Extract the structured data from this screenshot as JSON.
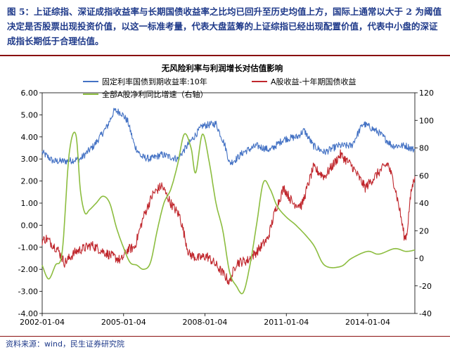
{
  "caption": "图 5：上证综指、深证成指收益率与长期国债收益率之比均已回升至历史均值上方，国际上通常以大于 2 为阈值决定是否股票出现投资价值，以这一标准考量，代表大盘蓝筹的上证综指已经出现配置价值，代表中小盘的深证成指长期低于合理估值。",
  "source": "资料来源：wind，民生证券研究院",
  "chart_data": {
    "type": "line",
    "title": "无风险利率与利润增长对估值影响",
    "xlabel": "",
    "ylabel": "",
    "x_ticks": [
      "2002-01-04",
      "2005-01-04",
      "2008-01-04",
      "2011-01-04",
      "2014-01-04"
    ],
    "x_range": [
      "2002-01-04",
      "2015-09-30"
    ],
    "ylim_left": [
      -4.0,
      6.0
    ],
    "y_ticks_left": [
      "6.00",
      "5.00",
      "4.00",
      "3.00",
      "2.00",
      "1.00",
      "0.00",
      "-1.00",
      "-2.00",
      "-3.00",
      "-4.00"
    ],
    "ylim_right": [
      -40,
      120
    ],
    "y_ticks_right": [
      "120",
      "100",
      "80",
      "60",
      "40",
      "20",
      "0",
      "-20",
      "-40"
    ],
    "legend_position": "top",
    "grid": false,
    "colors": {
      "bond_yield": "#4472c4",
      "spread": "#c0272d",
      "profit_growth": "#8cbd3f"
    },
    "series": [
      {
        "name": "固定利率国债到期收益率:10年",
        "axis": "left",
        "color": "#4472c4",
        "noise": 0.16,
        "x": [
          "2002-01-04",
          "2002-06-01",
          "2002-12-01",
          "2003-06-01",
          "2003-12-01",
          "2004-06-01",
          "2004-09-01",
          "2004-12-01",
          "2005-03-01",
          "2005-06-01",
          "2005-09-01",
          "2006-01-01",
          "2006-06-01",
          "2007-01-01",
          "2007-06-01",
          "2007-12-01",
          "2008-06-01",
          "2008-10-01",
          "2008-12-01",
          "2009-03-01",
          "2009-06-01",
          "2009-12-01",
          "2010-06-01",
          "2010-12-01",
          "2011-06-01",
          "2011-09-01",
          "2012-01-01",
          "2012-06-01",
          "2012-12-01",
          "2013-06-01",
          "2013-11-01",
          "2014-01-04",
          "2014-06-01",
          "2014-12-01",
          "2015-06-01",
          "2015-09-30"
        ],
        "y": [
          3.3,
          2.9,
          2.9,
          3.0,
          3.6,
          4.5,
          5.2,
          5.1,
          4.7,
          3.6,
          3.1,
          3.0,
          3.2,
          3.0,
          3.7,
          4.5,
          4.6,
          3.6,
          2.8,
          3.0,
          3.3,
          3.6,
          3.4,
          3.9,
          4.0,
          4.3,
          3.6,
          3.3,
          3.6,
          3.6,
          4.6,
          4.5,
          4.2,
          3.6,
          3.6,
          3.4
        ]
      },
      {
        "name": "A股收益-十年期国债收益",
        "axis": "left",
        "color": "#c0272d",
        "noise": 0.22,
        "x": [
          "2002-01-04",
          "2002-03-01",
          "2002-08-01",
          "2002-11-01",
          "2003-04-01",
          "2003-11-01",
          "2004-06-01",
          "2004-12-01",
          "2005-03-01",
          "2005-06-01",
          "2005-10-01",
          "2006-02-01",
          "2006-06-01",
          "2006-10-01",
          "2007-02-01",
          "2007-06-01",
          "2007-10-01",
          "2008-02-01",
          "2008-06-01",
          "2008-10-01",
          "2008-12-01",
          "2009-03-01",
          "2009-08-01",
          "2009-12-01",
          "2010-05-01",
          "2010-08-01",
          "2010-12-01",
          "2011-04-01",
          "2011-08-01",
          "2012-01-01",
          "2012-06-01",
          "2013-01-01",
          "2013-06-01",
          "2013-12-01",
          "2014-06-01",
          "2014-10-01",
          "2015-01-01",
          "2015-03-15",
          "2015-05-15",
          "2015-06-15",
          "2015-07-15",
          "2015-08-15",
          "2015-09-30"
        ],
        "y": [
          -0.7,
          -0.6,
          -1.1,
          -1.7,
          -1.2,
          -0.9,
          -1.3,
          -1.6,
          -1.1,
          -1.0,
          0.4,
          1.4,
          1.8,
          1.0,
          0.4,
          -1.3,
          -1.5,
          -1.4,
          -1.8,
          -2.3,
          -2.6,
          -1.7,
          -1.6,
          -1.2,
          -0.6,
          0.6,
          1.7,
          1.0,
          0.9,
          2.6,
          2.2,
          3.2,
          2.7,
          1.7,
          2.4,
          2.8,
          1.8,
          0.6,
          -0.6,
          -0.4,
          0.7,
          1.6,
          2.2
        ]
      },
      {
        "name": "全部A股净利同比增速（右轴）",
        "axis": "right",
        "color": "#8cbd3f",
        "noise": 0,
        "x": [
          "2002-01-04",
          "2002-04-01",
          "2002-07-01",
          "2002-10-01",
          "2003-01-01",
          "2003-04-01",
          "2003-06-01",
          "2003-08-01",
          "2003-10-01",
          "2004-01-01",
          "2004-04-01",
          "2004-07-01",
          "2004-10-01",
          "2005-01-01",
          "2005-04-01",
          "2005-07-01",
          "2005-10-01",
          "2006-01-01",
          "2006-04-01",
          "2006-07-01",
          "2006-10-01",
          "2007-01-01",
          "2007-04-01",
          "2007-07-01",
          "2007-09-01",
          "2007-12-01",
          "2008-03-01",
          "2008-06-01",
          "2008-09-01",
          "2008-12-01",
          "2009-03-01",
          "2009-06-01",
          "2009-09-01",
          "2009-12-01",
          "2010-03-01",
          "2010-06-01",
          "2010-09-01",
          "2011-01-01",
          "2011-06-01",
          "2012-01-01",
          "2012-06-01",
          "2013-01-01",
          "2013-06-01",
          "2014-01-01",
          "2014-06-01",
          "2015-01-01",
          "2015-06-01",
          "2015-09-30"
        ],
        "y": [
          -5,
          -15,
          -5,
          5,
          75,
          90,
          50,
          33,
          35,
          40,
          45,
          40,
          22,
          8,
          -3,
          -5,
          -8,
          -3,
          20,
          40,
          50,
          68,
          90,
          80,
          62,
          90,
          70,
          40,
          20,
          -10,
          -20,
          -25,
          -5,
          25,
          55,
          50,
          38,
          30,
          23,
          10,
          -5,
          -6,
          0,
          5,
          3,
          7,
          5,
          6
        ]
      }
    ]
  }
}
